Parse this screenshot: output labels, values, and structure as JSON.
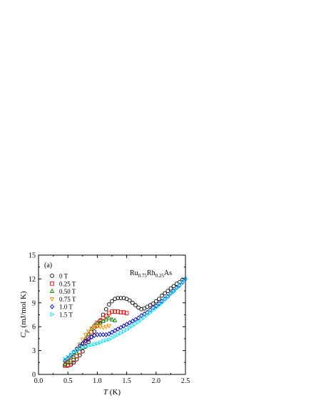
{
  "chart_data": {
    "type": "scatter",
    "panel_label": "(a)",
    "compound": {
      "base": "Ru",
      "sub1": "0.75",
      "mid": "Rh",
      "sub2": "0.25",
      "end": "As"
    },
    "xlabel": {
      "symbol": "T",
      "unit": " (K)"
    },
    "ylabel": {
      "symbol": "C",
      "subscript": "p",
      "unit": " (mJ/mol K)"
    },
    "xlim": [
      0.0,
      2.5
    ],
    "ylim": [
      0,
      15
    ],
    "xticks": [
      "0.0",
      "0.5",
      "1.0",
      "1.5",
      "2.0",
      "2.5"
    ],
    "yticks": [
      "0",
      "3",
      "6",
      "9",
      "12",
      "15"
    ],
    "grid": false,
    "legend_position": "top-left",
    "series": [
      {
        "name": "0 T",
        "color": "#000000",
        "marker": "circle",
        "points": [
          [
            0.45,
            1.2
          ],
          [
            0.5,
            1.1
          ],
          [
            0.55,
            1.2
          ],
          [
            0.6,
            1.5
          ],
          [
            0.65,
            1.9
          ],
          [
            0.7,
            2.4
          ],
          [
            0.75,
            2.9
          ],
          [
            0.8,
            3.5
          ],
          [
            0.85,
            4.1
          ],
          [
            0.9,
            4.7
          ],
          [
            0.95,
            5.4
          ],
          [
            1.0,
            6.1
          ],
          [
            1.05,
            6.8
          ],
          [
            1.1,
            7.5
          ],
          [
            1.15,
            8.2
          ],
          [
            1.2,
            8.8
          ],
          [
            1.25,
            9.2
          ],
          [
            1.3,
            9.5
          ],
          [
            1.35,
            9.6
          ],
          [
            1.4,
            9.6
          ],
          [
            1.45,
            9.6
          ],
          [
            1.5,
            9.5
          ],
          [
            1.55,
            9.3
          ],
          [
            1.6,
            9.0
          ],
          [
            1.65,
            8.7
          ],
          [
            1.7,
            8.4
          ],
          [
            1.75,
            8.2
          ],
          [
            1.8,
            8.3
          ],
          [
            1.85,
            8.5
          ],
          [
            1.9,
            8.7
          ],
          [
            1.95,
            8.9
          ],
          [
            2.0,
            9.2
          ],
          [
            2.05,
            9.5
          ],
          [
            2.1,
            9.9
          ],
          [
            2.15,
            10.2
          ],
          [
            2.2,
            10.5
          ],
          [
            2.25,
            10.8
          ],
          [
            2.3,
            11.1
          ],
          [
            2.35,
            11.4
          ],
          [
            2.4,
            11.6
          ],
          [
            2.45,
            11.9
          ]
        ]
      },
      {
        "name": "0.25 T",
        "color": "#ff0000",
        "marker": "square",
        "points": [
          [
            0.45,
            1.1
          ],
          [
            0.5,
            1.2
          ],
          [
            0.55,
            1.4
          ],
          [
            0.6,
            1.8
          ],
          [
            0.65,
            2.3
          ],
          [
            0.7,
            2.8
          ],
          [
            0.75,
            3.4
          ],
          [
            0.8,
            4.0
          ],
          [
            0.85,
            4.6
          ],
          [
            0.9,
            5.3
          ],
          [
            0.95,
            6.0
          ],
          [
            1.0,
            6.5
          ],
          [
            1.05,
            6.7
          ],
          [
            1.1,
            7.1
          ],
          [
            1.15,
            7.4
          ],
          [
            1.2,
            7.7
          ],
          [
            1.25,
            7.9
          ],
          [
            1.3,
            7.9
          ],
          [
            1.35,
            7.9
          ],
          [
            1.4,
            7.8
          ],
          [
            1.45,
            7.8
          ],
          [
            1.5,
            7.7
          ]
        ]
      },
      {
        "name": "0.50 T",
        "color": "#008000",
        "marker": "triangle-up",
        "points": [
          [
            0.45,
            1.3
          ],
          [
            0.5,
            1.5
          ],
          [
            0.55,
            1.8
          ],
          [
            0.6,
            2.2
          ],
          [
            0.65,
            2.7
          ],
          [
            0.7,
            3.3
          ],
          [
            0.75,
            3.9
          ],
          [
            0.8,
            4.5
          ],
          [
            0.85,
            5.1
          ],
          [
            0.9,
            5.7
          ],
          [
            0.95,
            6.2
          ],
          [
            1.0,
            6.4
          ],
          [
            1.05,
            6.5
          ],
          [
            1.1,
            6.7
          ],
          [
            1.15,
            6.9
          ],
          [
            1.2,
            7.1
          ],
          [
            1.25,
            6.9
          ],
          [
            1.3,
            6.8
          ]
        ]
      },
      {
        "name": "0.75 T",
        "color": "#ff8c00",
        "marker": "triangle-down",
        "points": [
          [
            0.45,
            1.5
          ],
          [
            0.5,
            1.8
          ],
          [
            0.55,
            2.2
          ],
          [
            0.6,
            2.7
          ],
          [
            0.65,
            3.2
          ],
          [
            0.7,
            3.8
          ],
          [
            0.75,
            4.4
          ],
          [
            0.8,
            5.0
          ],
          [
            0.85,
            5.4
          ],
          [
            0.9,
            5.8
          ],
          [
            0.95,
            6.0
          ],
          [
            1.0,
            6.1
          ],
          [
            1.05,
            6.0
          ],
          [
            1.1,
            5.9
          ],
          [
            1.15,
            6.0
          ],
          [
            1.2,
            6.1
          ]
        ]
      },
      {
        "name": "1.0 T",
        "color": "#0000cd",
        "marker": "diamond",
        "points": [
          [
            0.45,
            1.7
          ],
          [
            0.5,
            2.0
          ],
          [
            0.55,
            2.4
          ],
          [
            0.6,
            2.8
          ],
          [
            0.65,
            3.2
          ],
          [
            0.7,
            3.6
          ],
          [
            0.75,
            3.9
          ],
          [
            0.8,
            4.2
          ],
          [
            0.85,
            4.4
          ],
          [
            0.9,
            4.7
          ],
          [
            0.95,
            4.9
          ],
          [
            1.0,
            5.0
          ],
          [
            1.05,
            5.0
          ],
          [
            1.1,
            5.0
          ],
          [
            1.15,
            5.0
          ],
          [
            1.2,
            5.1
          ],
          [
            1.25,
            5.3
          ],
          [
            1.3,
            5.5
          ],
          [
            1.35,
            5.7
          ],
          [
            1.4,
            5.9
          ],
          [
            1.45,
            6.1
          ],
          [
            1.5,
            6.3
          ],
          [
            1.55,
            6.5
          ],
          [
            1.6,
            6.7
          ],
          [
            1.65,
            6.9
          ],
          [
            1.7,
            7.1
          ],
          [
            1.75,
            7.4
          ],
          [
            1.8,
            7.6
          ],
          [
            1.85,
            7.8
          ],
          [
            1.9,
            8.1
          ],
          [
            1.95,
            8.4
          ],
          [
            2.0,
            8.6
          ],
          [
            2.05,
            8.9
          ],
          [
            2.1,
            9.2
          ],
          [
            2.15,
            9.5
          ],
          [
            2.2,
            9.8
          ],
          [
            2.25,
            10.2
          ],
          [
            2.3,
            10.5
          ],
          [
            2.35,
            10.9
          ],
          [
            2.4,
            11.2
          ],
          [
            2.45,
            11.6
          ],
          [
            2.5,
            12.0
          ]
        ]
      },
      {
        "name": "1.5 T",
        "color": "#00e5ff",
        "marker": "triangle-right",
        "points": [
          [
            0.45,
            1.9
          ],
          [
            0.5,
            2.2
          ],
          [
            0.55,
            2.5
          ],
          [
            0.6,
            2.8
          ],
          [
            0.65,
            3.0
          ],
          [
            0.7,
            3.2
          ],
          [
            0.75,
            3.4
          ],
          [
            0.8,
            3.5
          ],
          [
            0.85,
            3.6
          ],
          [
            0.9,
            3.7
          ],
          [
            0.95,
            3.8
          ],
          [
            1.0,
            3.9
          ],
          [
            1.05,
            4.0
          ],
          [
            1.1,
            4.2
          ],
          [
            1.15,
            4.3
          ],
          [
            1.2,
            4.4
          ],
          [
            1.25,
            4.6
          ],
          [
            1.3,
            4.8
          ],
          [
            1.35,
            5.0
          ],
          [
            1.4,
            5.2
          ],
          [
            1.45,
            5.4
          ],
          [
            1.5,
            5.6
          ],
          [
            1.55,
            5.9
          ],
          [
            1.6,
            6.1
          ],
          [
            1.65,
            6.4
          ],
          [
            1.7,
            6.6
          ],
          [
            1.75,
            6.9
          ],
          [
            1.8,
            7.2
          ],
          [
            1.85,
            7.5
          ],
          [
            1.9,
            7.8
          ],
          [
            1.95,
            8.1
          ],
          [
            2.0,
            8.4
          ],
          [
            2.05,
            8.7
          ],
          [
            2.1,
            9.0
          ],
          [
            2.15,
            9.4
          ],
          [
            2.2,
            9.7
          ],
          [
            2.25,
            10.1
          ],
          [
            2.3,
            10.4
          ],
          [
            2.35,
            10.8
          ],
          [
            2.4,
            11.2
          ],
          [
            2.45,
            11.6
          ],
          [
            2.5,
            12.0
          ]
        ]
      }
    ]
  }
}
